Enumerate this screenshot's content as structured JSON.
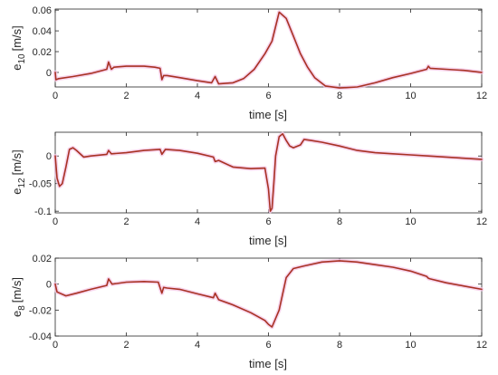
{
  "chart_data": [
    {
      "type": "line",
      "title": "",
      "xlabel": "time [s]",
      "ylabel": "e",
      "ylabel_sub": "10",
      "ylabel_unit": "[m/s]",
      "xlim": [
        0,
        12
      ],
      "ylim": [
        -0.014,
        0.061
      ],
      "xticks": [
        0,
        2,
        4,
        6,
        8,
        10,
        12
      ],
      "yticks": [
        0,
        0.02,
        0.04,
        0.06
      ],
      "ytick_labels": [
        "0",
        "0.02",
        "0.04",
        "0.06"
      ],
      "grid": false,
      "series": [
        {
          "color": "#a83224",
          "x": [
            0,
            0.02,
            0.1,
            0.5,
            1.0,
            1.45,
            1.5,
            1.58,
            1.65,
            2.0,
            2.5,
            2.8,
            2.95,
            3.0,
            3.05,
            3.15,
            3.5,
            4.0,
            4.4,
            4.5,
            4.6,
            5.0,
            5.3,
            5.6,
            5.9,
            6.1,
            6.3,
            6.5,
            6.7,
            6.9,
            7.1,
            7.3,
            7.6,
            8.0,
            8.5,
            9.0,
            9.5,
            10.0,
            10.45,
            10.5,
            10.55,
            11.0,
            11.5,
            12.0
          ],
          "y": [
            0,
            -0.007,
            -0.006,
            -0.004,
            -0.001,
            0.003,
            0.01,
            0.003,
            0.005,
            0.006,
            0.006,
            0.005,
            0.004,
            -0.007,
            -0.003,
            -0.003,
            -0.005,
            -0.008,
            -0.01,
            -0.004,
            -0.011,
            -0.01,
            -0.006,
            0.003,
            0.018,
            0.03,
            0.058,
            0.052,
            0.035,
            0.018,
            0.005,
            -0.005,
            -0.013,
            -0.015,
            -0.014,
            -0.01,
            -0.005,
            -0.001,
            0.003,
            0.006,
            0.004,
            0.003,
            0.002,
            0.0
          ]
        }
      ]
    },
    {
      "type": "line",
      "title": "",
      "xlabel": "time [s]",
      "ylabel": "e",
      "ylabel_sub": "12",
      "ylabel_unit": "[m/s]",
      "xlim": [
        0,
        12
      ],
      "ylim": [
        -0.103,
        0.043
      ],
      "xticks": [
        0,
        2,
        4,
        6,
        8,
        10,
        12
      ],
      "yticks": [
        -0.1,
        -0.05,
        0
      ],
      "ytick_labels": [
        "-0.1",
        "-0.05",
        "0"
      ],
      "grid": false,
      "series": [
        {
          "color": "#a83224",
          "x": [
            0,
            0.05,
            0.12,
            0.2,
            0.3,
            0.4,
            0.5,
            0.6,
            0.8,
            1.0,
            1.45,
            1.5,
            1.58,
            2.0,
            2.5,
            2.95,
            3.0,
            3.1,
            3.5,
            4.0,
            4.45,
            4.5,
            4.6,
            5.0,
            5.5,
            5.9,
            6.0,
            6.05,
            6.1,
            6.15,
            6.2,
            6.3,
            6.4,
            6.5,
            6.6,
            6.7,
            6.9,
            7.0,
            7.2,
            7.5,
            8.0,
            8.5,
            9.0,
            9.5,
            10.0,
            10.5,
            11.0,
            11.5,
            12.0
          ],
          "y": [
            0,
            -0.04,
            -0.055,
            -0.05,
            -0.02,
            0.012,
            0.015,
            0.01,
            -0.002,
            0.0,
            0.003,
            0.01,
            0.004,
            0.006,
            0.01,
            0.012,
            0.003,
            0.012,
            0.01,
            0.005,
            -0.002,
            -0.01,
            -0.008,
            -0.02,
            -0.023,
            -0.022,
            -0.06,
            -0.1,
            -0.095,
            -0.05,
            0.0,
            0.035,
            0.04,
            0.028,
            0.018,
            0.015,
            0.02,
            0.03,
            0.028,
            0.025,
            0.018,
            0.01,
            0.006,
            0.004,
            0.002,
            0.0,
            -0.002,
            -0.004,
            -0.006
          ]
        }
      ]
    },
    {
      "type": "line",
      "title": "",
      "xlabel": "time [s]",
      "ylabel": "e",
      "ylabel_sub": "8",
      "ylabel_unit": "[m/s]",
      "xlim": [
        0,
        12
      ],
      "ylim": [
        -0.04,
        0.02
      ],
      "xticks": [
        0,
        2,
        4,
        6,
        8,
        10,
        12
      ],
      "yticks": [
        -0.04,
        -0.02,
        0,
        0.02
      ],
      "ytick_labels": [
        "-0.04",
        "-0.02",
        "0",
        "0.02"
      ],
      "grid": false,
      "series": [
        {
          "color": "#a83224",
          "x": [
            0,
            0.05,
            0.3,
            0.6,
            1.0,
            1.45,
            1.5,
            1.6,
            2.0,
            2.5,
            2.9,
            3.0,
            3.05,
            3.15,
            3.5,
            4.0,
            4.45,
            4.5,
            4.6,
            5.0,
            5.5,
            5.9,
            6.0,
            6.1,
            6.3,
            6.5,
            6.7,
            7.0,
            7.5,
            8.0,
            8.5,
            9.0,
            9.5,
            10.0,
            10.45,
            10.5,
            10.55,
            11.0,
            11.5,
            12.0
          ],
          "y": [
            0,
            -0.006,
            -0.009,
            -0.007,
            -0.004,
            -0.001,
            0.004,
            0.0,
            0.0015,
            0.002,
            0.0015,
            -0.007,
            -0.0025,
            -0.003,
            -0.004,
            -0.0075,
            -0.0105,
            -0.007,
            -0.012,
            -0.016,
            -0.022,
            -0.028,
            -0.031,
            -0.033,
            -0.02,
            0.005,
            0.012,
            0.014,
            0.017,
            0.018,
            0.017,
            0.015,
            0.013,
            0.01,
            0.006,
            0.0045,
            0.004,
            0.001,
            -0.0015,
            -0.004
          ]
        }
      ]
    }
  ]
}
